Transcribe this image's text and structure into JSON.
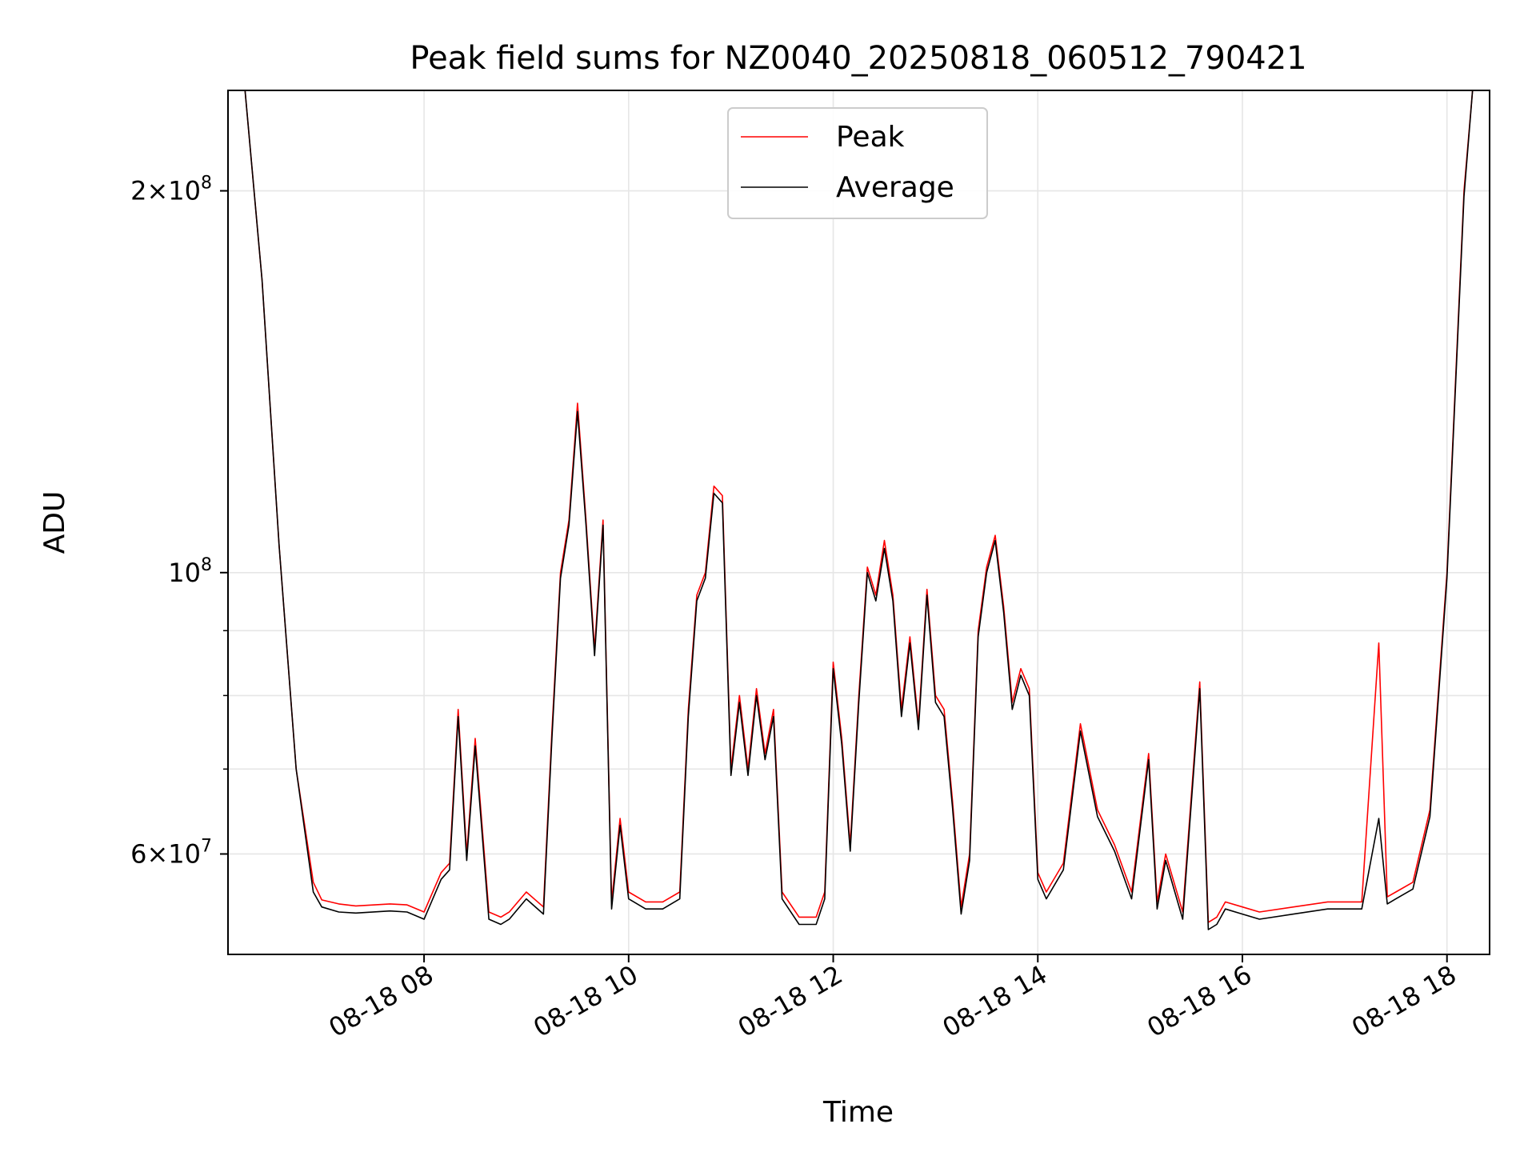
{
  "chart_data": {
    "type": "line",
    "title": "Peak field sums for NZ0040_20250818_060512_790421",
    "xlabel": "Time",
    "ylabel": "ADU",
    "yscale": "log",
    "grid": true,
    "legend": {
      "placement": "top-center"
    },
    "x_tick_labels": [
      "08-18 08",
      "08-18 10",
      "08-18 12",
      "08-18 14",
      "08-18 16",
      "08-18 18"
    ],
    "x_ticks": [
      "2025-08-18 08:00",
      "2025-08-18 10:00",
      "2025-08-18 12:00",
      "2025-08-18 14:00",
      "2025-08-18 16:00",
      "2025-08-18 18:00"
    ],
    "y_tick_labels": [
      {
        "value": 60000000,
        "mantissa": "6",
        "exp": "7"
      },
      {
        "value": 100000000,
        "mantissa": "",
        "exp": "8"
      },
      {
        "value": 200000000,
        "mantissa": "2",
        "exp": "8"
      }
    ],
    "y_minor_ticks": [
      70000000,
      80000000,
      90000000
    ],
    "xlim": [
      "2025-08-18 06:05",
      "2025-08-18 18:25"
    ],
    "ylim": [
      50000000,
      240000000
    ],
    "series": [
      {
        "name": "Peak",
        "color": "#ff0000",
        "x": [
          "2025-08-18 06:05",
          "2025-08-18 06:15",
          "2025-08-18 06:25",
          "2025-08-18 06:35",
          "2025-08-18 06:45",
          "2025-08-18 06:55",
          "2025-08-18 07:00",
          "2025-08-18 07:10",
          "2025-08-18 07:20",
          "2025-08-18 07:40",
          "2025-08-18 07:50",
          "2025-08-18 08:00",
          "2025-08-18 08:10",
          "2025-08-18 08:15",
          "2025-08-18 08:20",
          "2025-08-18 08:25",
          "2025-08-18 08:30",
          "2025-08-18 08:38",
          "2025-08-18 08:45",
          "2025-08-18 08:50",
          "2025-08-18 09:00",
          "2025-08-18 09:10",
          "2025-08-18 09:15",
          "2025-08-18 09:20",
          "2025-08-18 09:25",
          "2025-08-18 09:30",
          "2025-08-18 09:35",
          "2025-08-18 09:40",
          "2025-08-18 09:45",
          "2025-08-18 09:50",
          "2025-08-18 09:55",
          "2025-08-18 10:00",
          "2025-08-18 10:10",
          "2025-08-18 10:20",
          "2025-08-18 10:30",
          "2025-08-18 10:35",
          "2025-08-18 10:40",
          "2025-08-18 10:45",
          "2025-08-18 10:50",
          "2025-08-18 10:55",
          "2025-08-18 11:00",
          "2025-08-18 11:05",
          "2025-08-18 11:10",
          "2025-08-18 11:15",
          "2025-08-18 11:20",
          "2025-08-18 11:25",
          "2025-08-18 11:30",
          "2025-08-18 11:40",
          "2025-08-18 11:50",
          "2025-08-18 11:55",
          "2025-08-18 12:00",
          "2025-08-18 12:05",
          "2025-08-18 12:10",
          "2025-08-18 12:15",
          "2025-08-18 12:20",
          "2025-08-18 12:25",
          "2025-08-18 12:30",
          "2025-08-18 12:35",
          "2025-08-18 12:40",
          "2025-08-18 12:45",
          "2025-08-18 12:50",
          "2025-08-18 12:55",
          "2025-08-18 13:00",
          "2025-08-18 13:05",
          "2025-08-18 13:10",
          "2025-08-18 13:15",
          "2025-08-18 13:20",
          "2025-08-18 13:25",
          "2025-08-18 13:30",
          "2025-08-18 13:35",
          "2025-08-18 13:40",
          "2025-08-18 13:45",
          "2025-08-18 13:50",
          "2025-08-18 13:55",
          "2025-08-18 14:00",
          "2025-08-18 14:05",
          "2025-08-18 14:15",
          "2025-08-18 14:25",
          "2025-08-18 14:35",
          "2025-08-18 14:45",
          "2025-08-18 14:55",
          "2025-08-18 15:05",
          "2025-08-18 15:10",
          "2025-08-18 15:15",
          "2025-08-18 15:25",
          "2025-08-18 15:35",
          "2025-08-18 15:40",
          "2025-08-18 15:45",
          "2025-08-18 15:50",
          "2025-08-18 16:00",
          "2025-08-18 16:10",
          "2025-08-18 16:30",
          "2025-08-18 16:50",
          "2025-08-18 17:10",
          "2025-08-18 17:20",
          "2025-08-18 17:25",
          "2025-08-18 17:30",
          "2025-08-18 17:40",
          "2025-08-18 17:50",
          "2025-08-18 18:00",
          "2025-08-18 18:10",
          "2025-08-18 18:15",
          "2025-08-18 18:25"
        ],
        "y": [
          240000000,
          240000000,
          170000000,
          105000000,
          70000000,
          57000000,
          55200000,
          54800000,
          54600000,
          54800000,
          54700000,
          54000000,
          58000000,
          59000000,
          78000000,
          60000000,
          74000000,
          54000000,
          53500000,
          54000000,
          56000000,
          54500000,
          75000000,
          100000000,
          110000000,
          136000000,
          110000000,
          87000000,
          110000000,
          55000000,
          64000000,
          56000000,
          55000000,
          55000000,
          56000000,
          78000000,
          96000000,
          100000000,
          117000000,
          115000000,
          70000000,
          80000000,
          70000000,
          81000000,
          72000000,
          78000000,
          56000000,
          53500000,
          53500000,
          56000000,
          85000000,
          74000000,
          61000000,
          80000000,
          101000000,
          96000000,
          106000000,
          96000000,
          78000000,
          89000000,
          76000000,
          97000000,
          80000000,
          78000000,
          66000000,
          54500000,
          60000000,
          90000000,
          101000000,
          107000000,
          94000000,
          79000000,
          84000000,
          81000000,
          58000000,
          56000000,
          59000000,
          76000000,
          65000000,
          61000000,
          56000000,
          72000000,
          55000000,
          60000000,
          54000000,
          82000000,
          53000000,
          53500000,
          55000000,
          54500000,
          54000000,
          54500000,
          55000000,
          55000000,
          88000000,
          55500000,
          56000000,
          57000000,
          65000000,
          100000000,
          200000000,
          240000000,
          240000000
        ]
      },
      {
        "name": "Average",
        "color": "#000000",
        "x": [
          "2025-08-18 06:05",
          "2025-08-18 06:15",
          "2025-08-18 06:25",
          "2025-08-18 06:35",
          "2025-08-18 06:45",
          "2025-08-18 06:55",
          "2025-08-18 07:00",
          "2025-08-18 07:10",
          "2025-08-18 07:20",
          "2025-08-18 07:40",
          "2025-08-18 07:50",
          "2025-08-18 08:00",
          "2025-08-18 08:10",
          "2025-08-18 08:15",
          "2025-08-18 08:20",
          "2025-08-18 08:25",
          "2025-08-18 08:30",
          "2025-08-18 08:38",
          "2025-08-18 08:45",
          "2025-08-18 08:50",
          "2025-08-18 09:00",
          "2025-08-18 09:10",
          "2025-08-18 09:15",
          "2025-08-18 09:20",
          "2025-08-18 09:25",
          "2025-08-18 09:30",
          "2025-08-18 09:35",
          "2025-08-18 09:40",
          "2025-08-18 09:45",
          "2025-08-18 09:50",
          "2025-08-18 09:55",
          "2025-08-18 10:00",
          "2025-08-18 10:10",
          "2025-08-18 10:20",
          "2025-08-18 10:30",
          "2025-08-18 10:35",
          "2025-08-18 10:40",
          "2025-08-18 10:45",
          "2025-08-18 10:50",
          "2025-08-18 10:55",
          "2025-08-18 11:00",
          "2025-08-18 11:05",
          "2025-08-18 11:10",
          "2025-08-18 11:15",
          "2025-08-18 11:20",
          "2025-08-18 11:25",
          "2025-08-18 11:30",
          "2025-08-18 11:40",
          "2025-08-18 11:50",
          "2025-08-18 11:55",
          "2025-08-18 12:00",
          "2025-08-18 12:05",
          "2025-08-18 12:10",
          "2025-08-18 12:15",
          "2025-08-18 12:20",
          "2025-08-18 12:25",
          "2025-08-18 12:30",
          "2025-08-18 12:35",
          "2025-08-18 12:40",
          "2025-08-18 12:45",
          "2025-08-18 12:50",
          "2025-08-18 12:55",
          "2025-08-18 13:00",
          "2025-08-18 13:05",
          "2025-08-18 13:10",
          "2025-08-18 13:15",
          "2025-08-18 13:20",
          "2025-08-18 13:25",
          "2025-08-18 13:30",
          "2025-08-18 13:35",
          "2025-08-18 13:40",
          "2025-08-18 13:45",
          "2025-08-18 13:50",
          "2025-08-18 13:55",
          "2025-08-18 14:00",
          "2025-08-18 14:05",
          "2025-08-18 14:15",
          "2025-08-18 14:25",
          "2025-08-18 14:35",
          "2025-08-18 14:45",
          "2025-08-18 14:55",
          "2025-08-18 15:05",
          "2025-08-18 15:10",
          "2025-08-18 15:15",
          "2025-08-18 15:25",
          "2025-08-18 15:35",
          "2025-08-18 15:40",
          "2025-08-18 15:45",
          "2025-08-18 15:50",
          "2025-08-18 16:00",
          "2025-08-18 16:10",
          "2025-08-18 16:30",
          "2025-08-18 16:50",
          "2025-08-18 17:10",
          "2025-08-18 17:20",
          "2025-08-18 17:25",
          "2025-08-18 17:30",
          "2025-08-18 17:40",
          "2025-08-18 17:50",
          "2025-08-18 18:00",
          "2025-08-18 18:10",
          "2025-08-18 18:15",
          "2025-08-18 18:25"
        ],
        "y": [
          240000000,
          240000000,
          170000000,
          105000000,
          70000000,
          56000000,
          54500000,
          54000000,
          53900000,
          54100000,
          54000000,
          53300000,
          57300000,
          58300000,
          77000000,
          59300000,
          73000000,
          53300000,
          52800000,
          53300000,
          55300000,
          53800000,
          74000000,
          99000000,
          109000000,
          134000000,
          109000000,
          86000000,
          109000000,
          54300000,
          63200000,
          55300000,
          54300000,
          54300000,
          55300000,
          77000000,
          95000000,
          99000000,
          115500000,
          113500000,
          69200000,
          79000000,
          69200000,
          80000000,
          71200000,
          77000000,
          55300000,
          52800000,
          52800000,
          55300000,
          84000000,
          73200000,
          60300000,
          79000000,
          100000000,
          95000000,
          104500000,
          95000000,
          77000000,
          88000000,
          75200000,
          96000000,
          79000000,
          77000000,
          65200000,
          53800000,
          59300000,
          89000000,
          100000000,
          106000000,
          93000000,
          78000000,
          83000000,
          80000000,
          57300000,
          55300000,
          58300000,
          75000000,
          64200000,
          60300000,
          55300000,
          71200000,
          54300000,
          59300000,
          53300000,
          81000000,
          52300000,
          52800000,
          54300000,
          53800000,
          53300000,
          53800000,
          54300000,
          54300000,
          64000000,
          54800000,
          55300000,
          56300000,
          64200000,
          99000000,
          198000000,
          240000000,
          240000000
        ]
      }
    ]
  }
}
